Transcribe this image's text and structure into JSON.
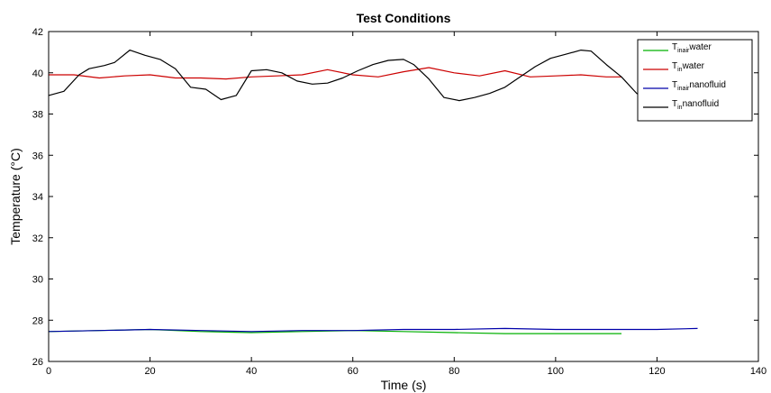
{
  "chart_data": {
    "type": "line",
    "title": "Test Conditions",
    "xlabel": "Time (s)",
    "ylabel": "Temperature (°C)",
    "xlim": [
      0,
      140
    ],
    "ylim": [
      26,
      42
    ],
    "xticks": [
      0,
      20,
      40,
      60,
      80,
      100,
      120,
      140
    ],
    "yticks": [
      26,
      28,
      30,
      32,
      34,
      36,
      38,
      40,
      42
    ],
    "grid": false,
    "legend_position": "top-right",
    "series": [
      {
        "name": "T_inair water",
        "label_main": "T",
        "label_sub": "inair",
        "label_rest": "water",
        "color": "#00b000",
        "x": [
          0,
          10,
          20,
          30,
          40,
          50,
          60,
          70,
          80,
          90,
          100,
          113
        ],
        "y": [
          27.45,
          27.5,
          27.55,
          27.45,
          27.4,
          27.45,
          27.5,
          27.45,
          27.4,
          27.35,
          27.35,
          27.35
        ]
      },
      {
        "name": "T_in water",
        "label_main": "T",
        "label_sub": "in",
        "label_rest": "water",
        "color": "#cc0000",
        "x": [
          0,
          5,
          10,
          15,
          20,
          25,
          30,
          35,
          40,
          45,
          50,
          55,
          60,
          65,
          70,
          75,
          80,
          85,
          90,
          95,
          100,
          105,
          110,
          113
        ],
        "y": [
          39.9,
          39.9,
          39.75,
          39.85,
          39.9,
          39.75,
          39.75,
          39.7,
          39.8,
          39.85,
          39.9,
          40.15,
          39.9,
          39.8,
          40.05,
          40.25,
          40.0,
          39.85,
          40.1,
          39.8,
          39.85,
          39.9,
          39.8,
          39.8
        ]
      },
      {
        "name": "T_inair nanofluid",
        "label_main": "T",
        "label_sub": "inair",
        "label_rest": "nanofluid",
        "color": "#0000aa",
        "x": [
          0,
          10,
          20,
          30,
          40,
          50,
          60,
          70,
          80,
          90,
          100,
          110,
          120,
          128
        ],
        "y": [
          27.45,
          27.5,
          27.55,
          27.5,
          27.45,
          27.5,
          27.5,
          27.55,
          27.55,
          27.6,
          27.55,
          27.55,
          27.55,
          27.6
        ]
      },
      {
        "name": "T_in nanofluid",
        "label_main": "T",
        "label_sub": "in",
        "label_rest": "nanofluid",
        "color": "#000000",
        "x": [
          0,
          3,
          6,
          8,
          11,
          13,
          16,
          19,
          22,
          25,
          28,
          31,
          34,
          37,
          40,
          43,
          46,
          49,
          52,
          55,
          58,
          61,
          64,
          67,
          70,
          72,
          75,
          78,
          81,
          84,
          87,
          90,
          93,
          96,
          99,
          102,
          105,
          107,
          110,
          113,
          116,
          118
        ],
        "y": [
          38.9,
          39.1,
          39.9,
          40.2,
          40.35,
          40.5,
          41.1,
          40.85,
          40.65,
          40.2,
          39.3,
          39.2,
          38.7,
          38.9,
          40.1,
          40.15,
          40.0,
          39.6,
          39.45,
          39.5,
          39.75,
          40.1,
          40.4,
          40.6,
          40.65,
          40.4,
          39.7,
          38.8,
          38.65,
          38.8,
          39.0,
          39.3,
          39.8,
          40.3,
          40.7,
          40.9,
          41.1,
          41.05,
          40.4,
          39.8,
          39.0,
          38.7
        ]
      }
    ]
  }
}
